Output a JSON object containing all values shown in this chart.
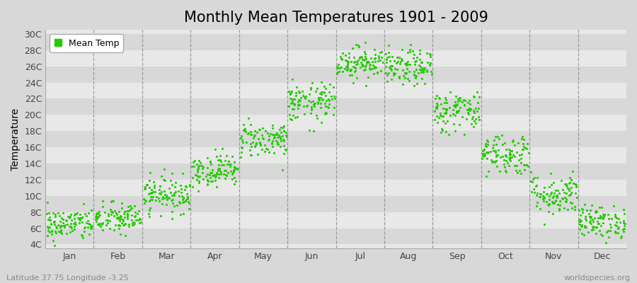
{
  "title": "Monthly Mean Temperatures 1901 - 2009",
  "ylabel": "Temperature",
  "xlabel_labels": [
    "Jan",
    "Feb",
    "Mar",
    "Apr",
    "May",
    "Jun",
    "Jul",
    "Aug",
    "Sep",
    "Oct",
    "Nov",
    "Dec"
  ],
  "ytick_labels": [
    "4C",
    "6C",
    "8C",
    "10C",
    "12C",
    "14C",
    "16C",
    "18C",
    "20C",
    "22C",
    "24C",
    "26C",
    "28C",
    "30C"
  ],
  "ytick_values": [
    4,
    6,
    8,
    10,
    12,
    14,
    16,
    18,
    20,
    22,
    24,
    26,
    28,
    30
  ],
  "ylim": [
    3.5,
    30.5
  ],
  "monthly_means": [
    6.5,
    7.2,
    10.2,
    13.2,
    17.0,
    21.5,
    26.5,
    25.8,
    20.5,
    15.2,
    10.2,
    6.8
  ],
  "monthly_std": [
    1.0,
    1.0,
    1.1,
    1.0,
    1.1,
    1.2,
    1.0,
    1.1,
    1.3,
    1.3,
    1.3,
    1.0
  ],
  "n_years": 109,
  "dot_color": "#22cc00",
  "dot_size": 5,
  "fig_bg_color": "#d8d8d8",
  "plot_bg_color": "#e8e8e8",
  "band_color_dark": "#d8d8d8",
  "band_color_light": "#e8e8e8",
  "title_fontsize": 15,
  "axis_label_fontsize": 10,
  "tick_fontsize": 9,
  "legend_label": "Mean Temp",
  "footer_left": "Latitude 37.75 Longitude -3.25",
  "footer_right": "worldspecies.org",
  "vline_color": "#888888",
  "seed": 42
}
